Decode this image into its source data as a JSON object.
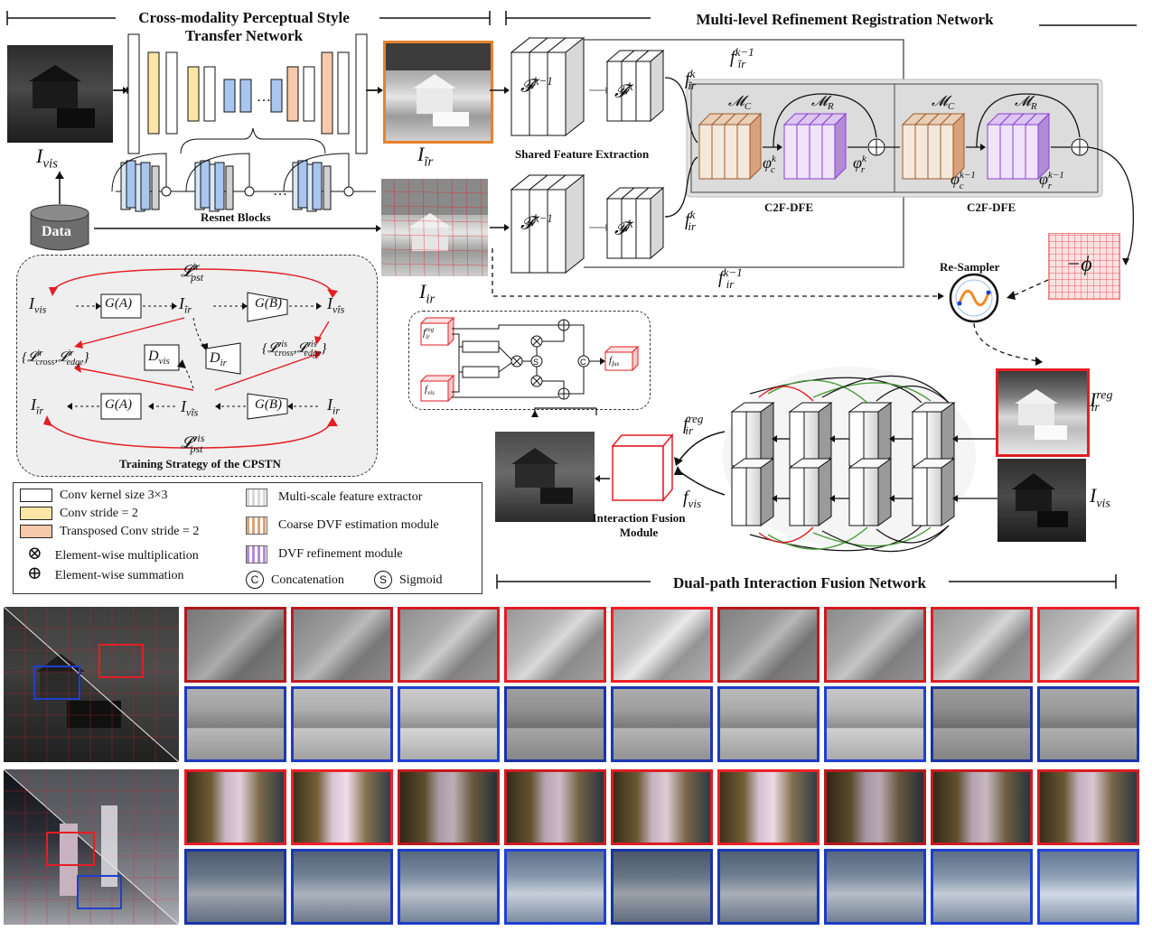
{
  "titles": {
    "cpstn": "Cross-modality Perceptual Style\nTransfer Network",
    "mrrn": "Multi-level Refinement Registration Network",
    "dpifn": "Dual-path Interaction Fusion Network"
  },
  "labels": {
    "i_vis": "I",
    "i_vis_sub": "vis",
    "i_ir_tilde": "I",
    "i_ir_tilde_sub": "ĩr",
    "i_ir": "I",
    "i_ir_sub": "ir",
    "data": "Data",
    "resnet_blocks": "Resnet Blocks",
    "shared_feature_extraction": "Shared Feature Extraction",
    "c2f_dfe_1": "C2F-DFE",
    "c2f_dfe_2": "C2F-DFE",
    "re_sampler": "Re-Sampler",
    "neg_phi": "−ϕ",
    "f_km1": "𝓕",
    "f_km1_sup": "k−1",
    "f_k": "𝓕",
    "f_k_sup": "k",
    "f_irt_k": "f",
    "f_irt_k_sub": "ĩr",
    "f_irt_k_sup": "k",
    "f_irt_km1": "f",
    "f_irt_km1_sub": "ĩr",
    "f_irt_km1_sup": "k−1",
    "f_ir_k": "f",
    "f_ir_k_sub": "ir",
    "f_ir_k_sup": "k",
    "f_ir_km1": "f",
    "f_ir_km1_sub": "ir",
    "f_ir_km1_sup": "k−1",
    "m_c": "𝓜",
    "m_c_sub": "C",
    "m_r": "𝓜",
    "m_r_sub": "R",
    "phi_c_k": "φ",
    "phi_c_k_sub": "c",
    "phi_c_k_sup": "k",
    "phi_r_k": "φ",
    "phi_r_k_sub": "r",
    "phi_r_k_sup": "k",
    "phi_c_km1": "φ",
    "phi_c_km1_sub": "c",
    "phi_c_km1_sup": "k−1",
    "phi_r_km1": "φ",
    "phi_r_km1_sub": "r",
    "phi_r_km1_sup": "k−1",
    "i_ir_reg": "I",
    "i_ir_reg_sub": "ir",
    "i_ir_reg_sup": "reg",
    "i_vis_2": "I",
    "i_vis_2_sub": "vis",
    "f_ir_reg": "f",
    "f_ir_reg_sub": "ir",
    "f_ir_reg_sup": "reg",
    "f_vis": "f",
    "f_vis_sub": "vis",
    "interaction_fusion": "Interaction Fusion\nModule",
    "training_strategy": "Training Strategy of the CPSTN",
    "ifm_f_ir_reg": "f",
    "ifm_f_ir_reg_sub": "ir",
    "ifm_f_ir_reg_sup": "reg",
    "ifm_f_vis": "f",
    "ifm_f_vis_sub": "vis",
    "ifm_f_fus": "f",
    "ifm_f_fus_sub": "fus"
  },
  "training": {
    "l_pst_ir": "𝓛",
    "l_pst_ir_sub": "pst",
    "l_pst_ir_sup": "ir",
    "l_pst_vis": "𝓛",
    "l_pst_vis_sub": "pst",
    "l_pst_vis_sup": "vis",
    "ga": "G(A)",
    "gb": "G(B)",
    "d_vis": "D",
    "d_vis_sub": "vis",
    "d_ir": "D",
    "d_ir_sub": "ir",
    "i_vis_l": "I",
    "i_vis_l_sub": "vis",
    "i_irt": "I",
    "i_irt_sub": "ĩr",
    "i_vis_hat_r": "I",
    "i_vis_hat_r_sub": "vîs",
    "i_ir_hat_l": "I",
    "i_ir_hat_l_sub": "îr",
    "i_vis_t": "I",
    "i_vis_t_sub": "vĩs",
    "i_ir_r": "I",
    "i_ir_r_sub": "ir",
    "loss_left": "{𝓛",
    "loss_left_a_sub": "cross",
    "loss_left_a_sup": "ir",
    "loss_left_b": ",𝓛",
    "loss_left_b_sub": "edge",
    "loss_left_b_sup": "ir",
    "loss_left_end": "}",
    "loss_right": "{𝓛",
    "loss_right_a_sub": "cross",
    "loss_right_a_sup": "vis",
    "loss_right_b": ",𝓛",
    "loss_right_b_sub": "edge",
    "loss_right_b_sup": "vis",
    "loss_right_end": "}"
  },
  "legend": [
    {
      "label": "Conv kernel size 3×3",
      "color": "#ffffff"
    },
    {
      "label": "Conv stride = 2",
      "color": "#fbe6a6"
    },
    {
      "label": "Transposed  Conv stride = 2",
      "color": "#f6c9ac"
    },
    {
      "label": "Element-wise multiplication",
      "symbol": "⊗"
    },
    {
      "label": "Element-wise summation",
      "symbol": "⊕"
    }
  ],
  "legend_right": [
    {
      "label": "Multi-scale feature extractor",
      "color": "#d8d8d8"
    },
    {
      "label": "Coarse DVF estimation module",
      "color": "#d9a27c"
    },
    {
      "label": "DVF refinement module",
      "color": "#b28bd6"
    },
    {
      "label": "Concatenation",
      "symbol": "C"
    },
    {
      "label": "Sigmoid",
      "symbol": "S"
    }
  ],
  "colors": {
    "red": "#e31e24",
    "blue": "#1f3fd1",
    "orange": "#e7812d",
    "brown": "#9c5a2c",
    "purple": "#8a3fd1",
    "green": "#4a9a3a",
    "yellow": "#fbe6a6",
    "salmon": "#f6c9ac",
    "lightblue": "#a9c6ee",
    "panel": "#efefef"
  }
}
